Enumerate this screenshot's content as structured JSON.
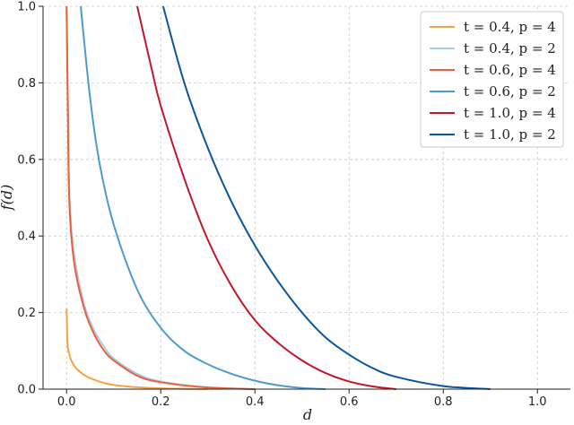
{
  "chart_data": {
    "type": "line",
    "xlabel": "d",
    "ylabel": "f(d)",
    "xlim": [
      -0.05,
      1.07
    ],
    "ylim": [
      0,
      1.0
    ],
    "xticks": [
      "0.0",
      "0.2",
      "0.4",
      "0.6",
      "0.8",
      "1.0"
    ],
    "yticks": [
      "0.0",
      "0.2",
      "0.4",
      "0.6",
      "0.8",
      "1.0"
    ],
    "grid": true,
    "legend_position": "top-right",
    "series": [
      {
        "name": "t = 0.4, p = 4",
        "color": "#f4a342",
        "x": [
          0.0,
          0.002,
          0.005,
          0.01,
          0.02,
          0.04,
          0.06,
          0.08,
          0.1,
          0.15,
          0.2,
          0.3
        ],
        "y": [
          0.21,
          0.12,
          0.095,
          0.075,
          0.055,
          0.035,
          0.024,
          0.016,
          0.011,
          0.005,
          0.002,
          0.0
        ]
      },
      {
        "name": "t = 0.4, p = 2",
        "color": "#a6cde8",
        "x": [
          0.0,
          0.003,
          0.005,
          0.01,
          0.02,
          0.04,
          0.06,
          0.08,
          0.1,
          0.15,
          0.2,
          0.3,
          0.4
        ],
        "y": [
          1.0,
          0.72,
          0.55,
          0.42,
          0.32,
          0.21,
          0.15,
          0.11,
          0.08,
          0.04,
          0.02,
          0.005,
          0.0
        ]
      },
      {
        "name": "t = 0.6, p = 4",
        "color": "#e8623a",
        "x": [
          0.0,
          0.003,
          0.005,
          0.01,
          0.02,
          0.04,
          0.06,
          0.08,
          0.1,
          0.15,
          0.2,
          0.3,
          0.4
        ],
        "y": [
          1.0,
          0.7,
          0.52,
          0.4,
          0.3,
          0.2,
          0.14,
          0.1,
          0.075,
          0.035,
          0.018,
          0.004,
          0.0
        ]
      },
      {
        "name": "t = 0.6, p = 2",
        "color": "#4b9bcf",
        "x": [
          0.03,
          0.05,
          0.07,
          0.1,
          0.15,
          0.2,
          0.25,
          0.3,
          0.35,
          0.4,
          0.45,
          0.5,
          0.55
        ],
        "y": [
          1.0,
          0.76,
          0.59,
          0.43,
          0.26,
          0.16,
          0.1,
          0.065,
          0.04,
          0.022,
          0.01,
          0.003,
          0.0
        ]
      },
      {
        "name": "t = 1.0, p = 4",
        "color": "#c4162a",
        "x": [
          0.15,
          0.18,
          0.2,
          0.25,
          0.3,
          0.35,
          0.4,
          0.45,
          0.5,
          0.55,
          0.6,
          0.65,
          0.7
        ],
        "y": [
          1.0,
          0.84,
          0.74,
          0.55,
          0.39,
          0.27,
          0.18,
          0.12,
          0.075,
          0.042,
          0.02,
          0.007,
          0.0
        ]
      },
      {
        "name": "t = 1.0, p = 2",
        "color": "#0b559f",
        "x": [
          0.205,
          0.25,
          0.3,
          0.35,
          0.4,
          0.45,
          0.5,
          0.55,
          0.6,
          0.65,
          0.7,
          0.8,
          0.9
        ],
        "y": [
          1.0,
          0.8,
          0.63,
          0.49,
          0.375,
          0.28,
          0.2,
          0.135,
          0.09,
          0.055,
          0.032,
          0.008,
          0.0
        ]
      }
    ]
  }
}
